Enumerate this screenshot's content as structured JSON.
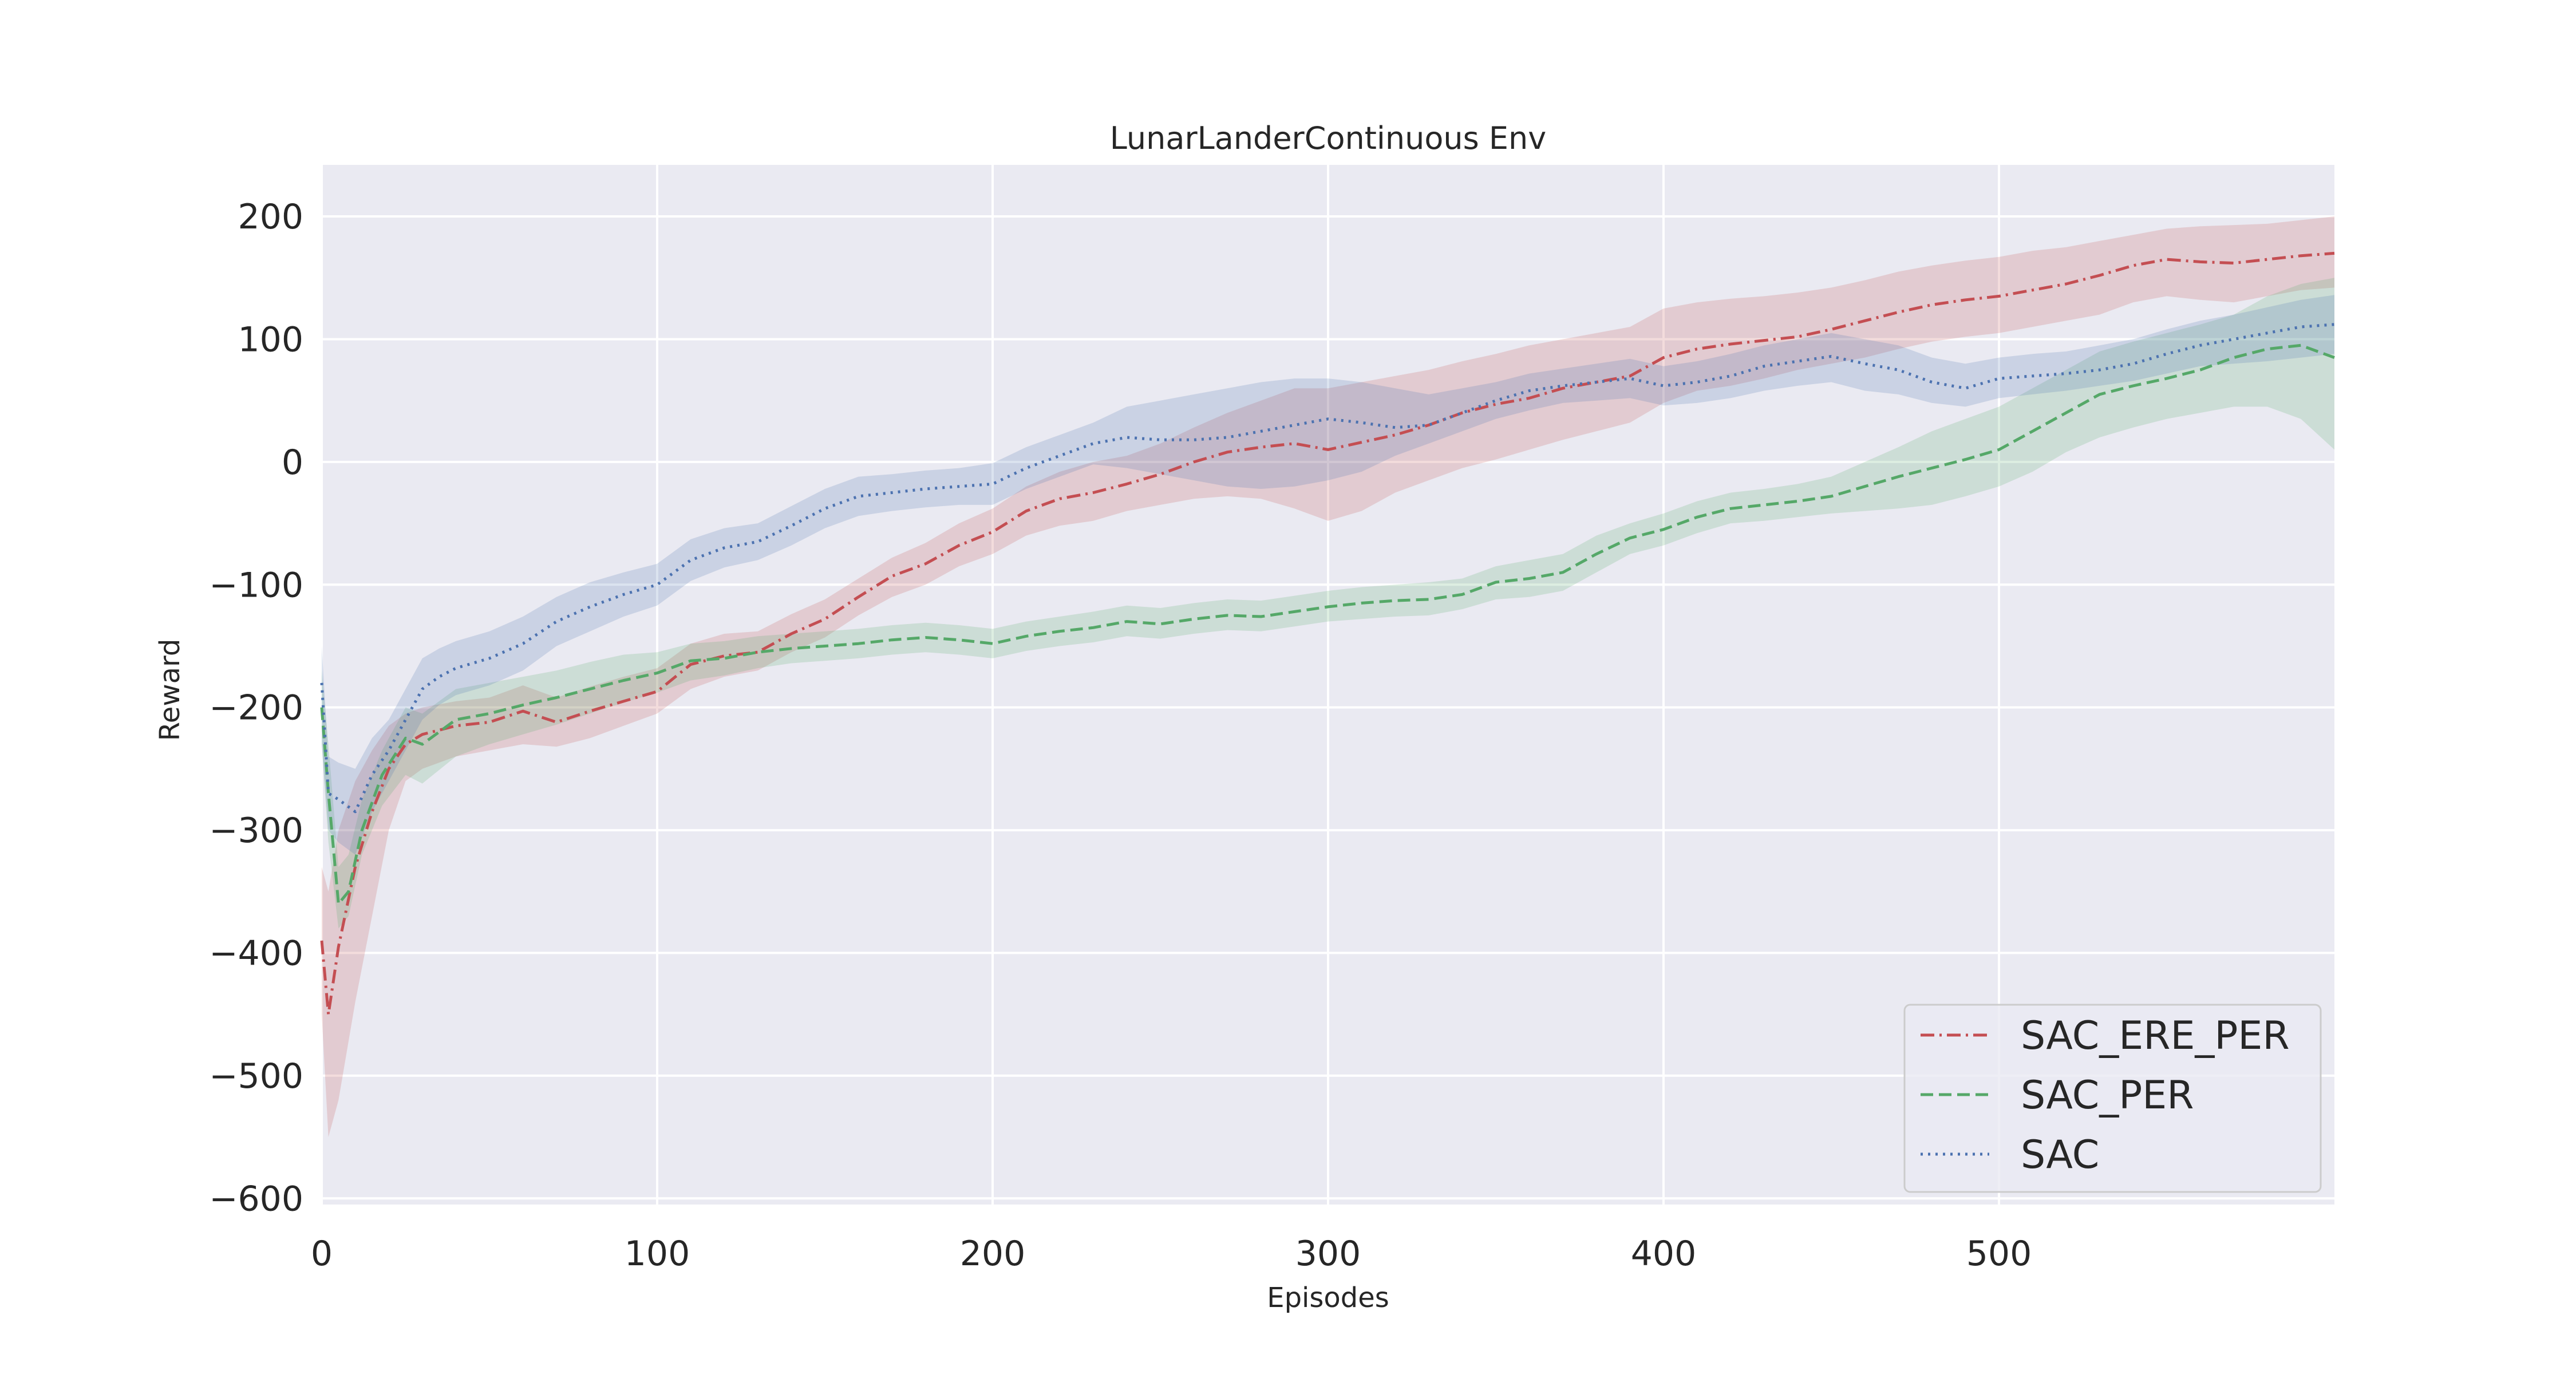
{
  "chart_data": {
    "type": "line",
    "title": "LunarLanderContinuous Env",
    "xlabel": "Episodes",
    "ylabel": "Reward",
    "xlim": [
      0,
      600
    ],
    "ylim": [
      -605,
      242
    ],
    "xticks": [
      0,
      100,
      200,
      300,
      400,
      500
    ],
    "yticks": [
      200,
      100,
      0,
      -100,
      -200,
      -300,
      -400,
      -500,
      -600
    ],
    "grid": true,
    "legend_position": "lower-right",
    "colors": {
      "background": "#eaeaf2",
      "grid": "#ffffff",
      "SAC_ERE_PER": "#c44e52",
      "SAC_PER": "#55a868",
      "SAC": "#4c72b0"
    },
    "series": [
      {
        "name": "SAC_ERE_PER",
        "style": "dashdot",
        "x": [
          0,
          2,
          5,
          10,
          15,
          20,
          25,
          30,
          40,
          50,
          60,
          70,
          80,
          90,
          100,
          110,
          120,
          130,
          140,
          150,
          160,
          170,
          180,
          190,
          200,
          210,
          220,
          230,
          240,
          250,
          260,
          270,
          280,
          290,
          300,
          310,
          320,
          330,
          340,
          350,
          360,
          370,
          380,
          390,
          400,
          410,
          420,
          430,
          440,
          450,
          460,
          470,
          480,
          490,
          500,
          510,
          520,
          530,
          540,
          550,
          560,
          570,
          580,
          590,
          600
        ],
        "y": [
          -390,
          -450,
          -395,
          -330,
          -285,
          -250,
          -230,
          -222,
          -215,
          -212,
          -203,
          -212,
          -203,
          -195,
          -187,
          -165,
          -158,
          -155,
          -140,
          -128,
          -110,
          -93,
          -83,
          -68,
          -57,
          -40,
          -30,
          -25,
          -18,
          -10,
          0,
          8,
          12,
          15,
          10,
          16,
          22,
          30,
          40,
          47,
          52,
          60,
          65,
          70,
          85,
          92,
          96,
          99,
          102,
          108,
          115,
          122,
          128,
          132,
          135,
          140,
          145,
          152,
          160,
          165,
          163,
          162,
          165,
          168,
          170
        ],
        "lower": [
          -450,
          -550,
          -520,
          -440,
          -370,
          -300,
          -260,
          -250,
          -240,
          -235,
          -230,
          -232,
          -225,
          -215,
          -205,
          -185,
          -175,
          -170,
          -155,
          -143,
          -125,
          -110,
          -100,
          -85,
          -75,
          -60,
          -52,
          -48,
          -40,
          -35,
          -30,
          -28,
          -30,
          -38,
          -48,
          -40,
          -25,
          -15,
          -5,
          2,
          10,
          18,
          25,
          32,
          48,
          58,
          62,
          68,
          75,
          80,
          85,
          92,
          98,
          102,
          105,
          110,
          115,
          120,
          130,
          135,
          132,
          130,
          135,
          140,
          142
        ],
        "upper": [
          -330,
          -350,
          -300,
          -260,
          -235,
          -215,
          -205,
          -200,
          -195,
          -192,
          -182,
          -192,
          -183,
          -175,
          -168,
          -148,
          -140,
          -138,
          -124,
          -112,
          -95,
          -78,
          -66,
          -50,
          -38,
          -20,
          -8,
          0,
          5,
          15,
          28,
          40,
          50,
          60,
          60,
          65,
          70,
          75,
          82,
          88,
          95,
          100,
          105,
          110,
          125,
          130,
          133,
          135,
          138,
          142,
          148,
          155,
          160,
          164,
          167,
          172,
          175,
          180,
          185,
          190,
          192,
          193,
          194,
          197,
          200
        ]
      },
      {
        "name": "SAC_PER",
        "style": "dashed",
        "x": [
          0,
          2,
          5,
          8,
          12,
          18,
          25,
          30,
          40,
          50,
          60,
          70,
          80,
          90,
          100,
          110,
          120,
          130,
          140,
          150,
          160,
          170,
          180,
          190,
          200,
          210,
          220,
          230,
          240,
          250,
          260,
          270,
          280,
          290,
          300,
          310,
          320,
          330,
          340,
          350,
          360,
          370,
          380,
          390,
          400,
          410,
          420,
          430,
          440,
          450,
          460,
          470,
          480,
          490,
          500,
          510,
          520,
          530,
          540,
          550,
          560,
          570,
          580,
          590,
          600
        ],
        "y": [
          -200,
          -270,
          -360,
          -350,
          -300,
          -255,
          -225,
          -230,
          -210,
          -205,
          -198,
          -192,
          -185,
          -178,
          -172,
          -162,
          -160,
          -155,
          -152,
          -150,
          -148,
          -145,
          -143,
          -145,
          -148,
          -142,
          -138,
          -135,
          -130,
          -132,
          -128,
          -125,
          -126,
          -122,
          -118,
          -115,
          -113,
          -112,
          -108,
          -98,
          -95,
          -90,
          -75,
          -62,
          -55,
          -45,
          -38,
          -35,
          -32,
          -28,
          -20,
          -12,
          -5,
          2,
          10,
          25,
          40,
          55,
          62,
          68,
          75,
          85,
          92,
          95,
          85
        ],
        "lower": [
          -230,
          -310,
          -380,
          -370,
          -320,
          -280,
          -255,
          -262,
          -240,
          -230,
          -222,
          -214,
          -205,
          -196,
          -188,
          -178,
          -174,
          -168,
          -164,
          -162,
          -160,
          -157,
          -155,
          -157,
          -160,
          -154,
          -150,
          -147,
          -142,
          -144,
          -140,
          -137,
          -138,
          -134,
          -130,
          -128,
          -126,
          -125,
          -120,
          -112,
          -110,
          -105,
          -90,
          -75,
          -68,
          -58,
          -50,
          -48,
          -45,
          -42,
          -40,
          -38,
          -35,
          -28,
          -20,
          -8,
          8,
          20,
          28,
          35,
          40,
          45,
          45,
          35,
          10
        ],
        "upper": [
          -170,
          -230,
          -330,
          -320,
          -275,
          -235,
          -200,
          -205,
          -185,
          -180,
          -175,
          -170,
          -163,
          -157,
          -155,
          -148,
          -146,
          -142,
          -140,
          -138,
          -136,
          -133,
          -131,
          -133,
          -136,
          -130,
          -126,
          -122,
          -117,
          -119,
          -115,
          -112,
          -113,
          -109,
          -105,
          -102,
          -100,
          -98,
          -95,
          -85,
          -80,
          -75,
          -60,
          -50,
          -42,
          -32,
          -25,
          -22,
          -18,
          -12,
          0,
          12,
          25,
          35,
          45,
          60,
          75,
          90,
          98,
          105,
          112,
          120,
          135,
          145,
          150
        ]
      },
      {
        "name": "SAC",
        "style": "dotted",
        "x": [
          0,
          2,
          5,
          10,
          15,
          20,
          25,
          30,
          35,
          40,
          50,
          60,
          70,
          80,
          90,
          100,
          110,
          120,
          130,
          140,
          150,
          160,
          170,
          180,
          190,
          200,
          210,
          220,
          230,
          240,
          250,
          260,
          270,
          280,
          290,
          300,
          310,
          320,
          330,
          340,
          350,
          360,
          370,
          380,
          390,
          400,
          410,
          420,
          430,
          440,
          450,
          460,
          470,
          480,
          490,
          500,
          510,
          520,
          530,
          540,
          550,
          560,
          570,
          580,
          590,
          600
        ],
        "y": [
          -180,
          -270,
          -275,
          -285,
          -255,
          -235,
          -210,
          -185,
          -175,
          -168,
          -160,
          -148,
          -130,
          -118,
          -108,
          -100,
          -80,
          -70,
          -65,
          -52,
          -38,
          -28,
          -25,
          -22,
          -20,
          -18,
          -5,
          5,
          15,
          20,
          18,
          18,
          20,
          25,
          30,
          35,
          32,
          28,
          30,
          40,
          50,
          58,
          62,
          65,
          68,
          62,
          65,
          70,
          78,
          82,
          86,
          80,
          75,
          65,
          60,
          68,
          70,
          72,
          75,
          80,
          88,
          95,
          100,
          105,
          110,
          112
        ],
        "lower": [
          -230,
          -300,
          -310,
          -320,
          -285,
          -260,
          -235,
          -210,
          -198,
          -190,
          -182,
          -170,
          -150,
          -138,
          -126,
          -117,
          -97,
          -86,
          -80,
          -68,
          -54,
          -44,
          -40,
          -37,
          -35,
          -35,
          -22,
          -12,
          -2,
          -5,
          -10,
          -15,
          -20,
          -22,
          -20,
          -15,
          -8,
          5,
          15,
          25,
          35,
          42,
          48,
          50,
          52,
          46,
          48,
          52,
          58,
          62,
          65,
          58,
          55,
          48,
          45,
          52,
          55,
          58,
          62,
          66,
          72,
          78,
          80,
          82,
          85,
          88
        ],
        "upper": [
          -150,
          -240,
          -245,
          -250,
          -225,
          -210,
          -185,
          -160,
          -152,
          -146,
          -138,
          -126,
          -110,
          -98,
          -90,
          -83,
          -63,
          -54,
          -50,
          -36,
          -22,
          -12,
          -10,
          -7,
          -5,
          -1,
          12,
          22,
          32,
          45,
          50,
          55,
          60,
          65,
          68,
          68,
          65,
          60,
          55,
          60,
          65,
          72,
          76,
          80,
          84,
          78,
          82,
          88,
          95,
          100,
          105,
          100,
          95,
          85,
          80,
          85,
          88,
          90,
          95,
          100,
          108,
          115,
          120,
          126,
          132,
          136
        ]
      }
    ]
  }
}
